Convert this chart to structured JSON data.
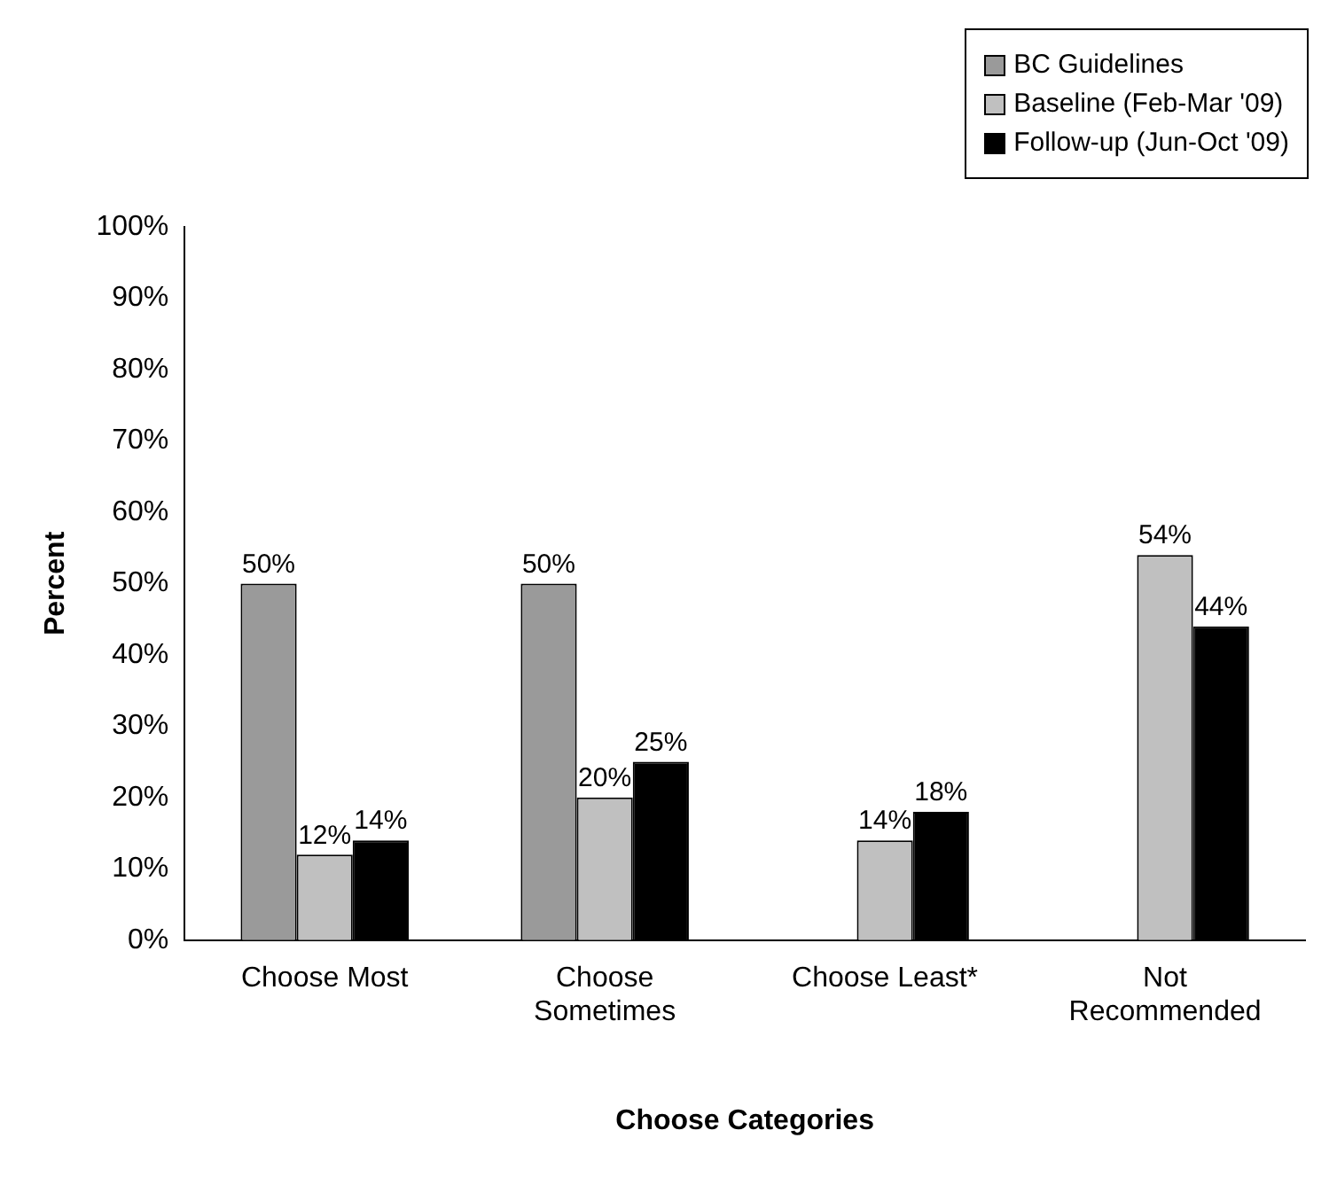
{
  "chart_data": {
    "type": "bar",
    "xlabel": "Choose Categories",
    "ylabel": "Percent",
    "categories": [
      "Choose Most",
      "Choose Sometimes",
      "Choose Least*",
      "Not Recommended"
    ],
    "series": [
      {
        "name": "BC Guidelines",
        "color": "#9a9a9a",
        "values": [
          50,
          50,
          null,
          null
        ],
        "value_labels": [
          "50%",
          "50%",
          null,
          null
        ]
      },
      {
        "name": "Baseline (Feb-Mar '09)",
        "color": "#c0c0c0",
        "values": [
          12,
          20,
          14,
          54
        ],
        "value_labels": [
          "12%",
          "20%",
          "14%",
          "54%"
        ]
      },
      {
        "name": "Follow-up (Jun-Oct '09)",
        "color": "#000000",
        "values": [
          14,
          25,
          18,
          44
        ],
        "value_labels": [
          "14%",
          "25%",
          "18%",
          "44%"
        ]
      }
    ],
    "ylim": [
      0,
      100
    ],
    "yticks": [
      {
        "value": 0,
        "label": "0%"
      },
      {
        "value": 10,
        "label": "10%"
      },
      {
        "value": 20,
        "label": "20%"
      },
      {
        "value": 30,
        "label": "30%"
      },
      {
        "value": 40,
        "label": "40%"
      },
      {
        "value": 50,
        "label": "50%"
      },
      {
        "value": 60,
        "label": "60%"
      },
      {
        "value": 70,
        "label": "70%"
      },
      {
        "value": 80,
        "label": "80%"
      },
      {
        "value": 90,
        "label": "90%"
      },
      {
        "value": 100,
        "label": "100%"
      }
    ],
    "grid": false,
    "legend": "top right"
  }
}
